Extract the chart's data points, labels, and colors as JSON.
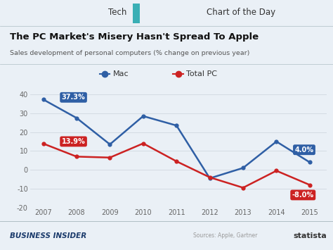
{
  "years": [
    2007,
    2008,
    2009,
    2010,
    2011,
    2012,
    2013,
    2014,
    2015
  ],
  "mac_values": [
    37.3,
    27.5,
    13.5,
    28.5,
    23.5,
    -4.5,
    1.0,
    15.0,
    4.0
  ],
  "pc_values": [
    13.9,
    7.0,
    6.5,
    14.0,
    4.5,
    -4.0,
    -9.5,
    -0.5,
    -8.0
  ],
  "mac_color": "#2f5fa5",
  "pc_color": "#cc2222",
  "label_mac_end": "4.0%",
  "label_pc_end": "-8.0%",
  "label_mac_start": "37.3%",
  "label_pc_start": "13.9%",
  "title": "The PC Market's Misery Hasn't Spread To Apple",
  "subtitle": "Sales development of personal computers (% change on previous year)",
  "legend_mac": "Mac",
  "legend_pc": "Total PC",
  "ylim": [
    -20,
    45
  ],
  "yticks": [
    -20,
    -10,
    0,
    10,
    20,
    30,
    40
  ],
  "bg_light": "#eaf0f6",
  "bg_white": "#ffffff",
  "footer_left": "Business Insider",
  "footer_right": "Sources: Apple, Gartner",
  "statista_text": "statista",
  "grid_color": "#d0d8e0",
  "header_line_color": "#b0bec5",
  "teal_color": "#3aafb5",
  "teal_dark": "#2a8f95",
  "ann_mac": "#2f5fa5",
  "ann_pc": "#cc2222"
}
